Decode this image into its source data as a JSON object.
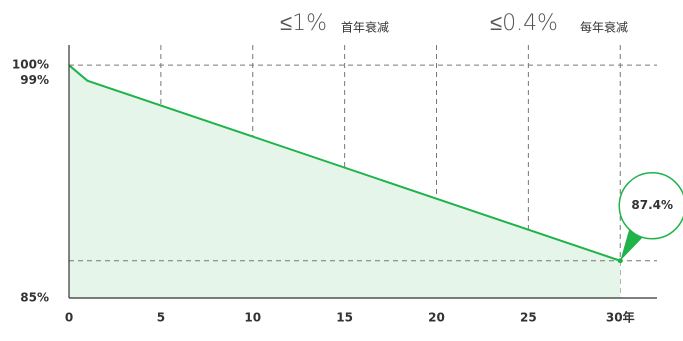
{
  "chart_data": {
    "type": "line",
    "annotations": [
      {
        "text": "≤1%",
        "note": "首年衰减"
      },
      {
        "text": "≤0.4%",
        "note": "每年衰减"
      }
    ],
    "x": [
      0,
      1,
      30
    ],
    "series": [
      {
        "color": "#1fb34a",
        "values": [
          100,
          99,
          87.4
        ],
        "value_labels": [
          null,
          null,
          "87.4%"
        ]
      }
    ],
    "area_color": "#e6f5ea",
    "xlim": [
      0,
      32
    ],
    "ylim": [
      85,
      101.3
    ],
    "xticks": [
      0,
      5,
      10,
      15,
      20,
      25,
      {
        "value": 30,
        "label": "30年"
      }
    ],
    "yticks": [
      {
        "value": 85,
        "label": "85%"
      },
      {
        "value": 99,
        "label": "99%"
      },
      {
        "value": 100,
        "label": "100%"
      }
    ],
    "grid": true,
    "endpoint_guides": true
  }
}
